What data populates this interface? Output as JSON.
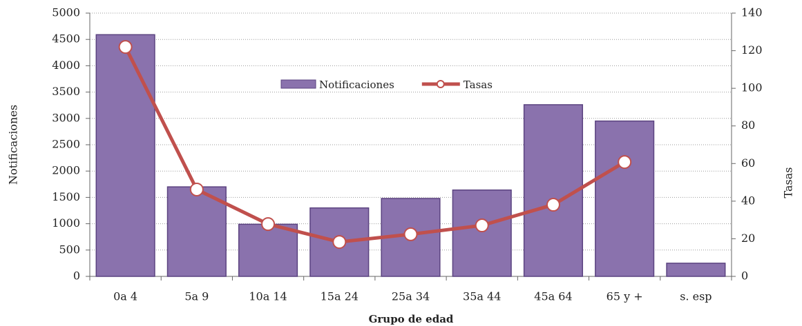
{
  "chart_data": {
    "type": "bar-line",
    "categories": [
      "0a 4",
      "5a 9",
      "10a 14",
      "15a 24",
      "25a 34",
      "35a 44",
      "45a 64",
      "65 y +",
      "s. esp"
    ],
    "series": [
      {
        "name": "Notificaciones",
        "type": "bar",
        "color": "#8a72ad",
        "values": [
          4590,
          1700,
          990,
          1300,
          1480,
          1640,
          3260,
          2950,
          250
        ]
      },
      {
        "name": "Tasas",
        "type": "line",
        "axis": "y2",
        "color": "#c0504d",
        "values": [
          122,
          46.2,
          27.8,
          18.3,
          22.4,
          27.1,
          38.1,
          60.8,
          null
        ]
      }
    ],
    "xlabel": "Grupo de edad",
    "ylabel": "Notificaciones",
    "y2label": "Tasas",
    "ylim": [
      0,
      5000
    ],
    "yticks": [
      0,
      500,
      1000,
      1500,
      2000,
      2500,
      3000,
      3500,
      4000,
      4500,
      5000
    ],
    "y2lim": [
      0,
      140
    ],
    "y2ticks": [
      0,
      20,
      40,
      60,
      80,
      100,
      120,
      140
    ],
    "grid": true,
    "legend": "top"
  }
}
